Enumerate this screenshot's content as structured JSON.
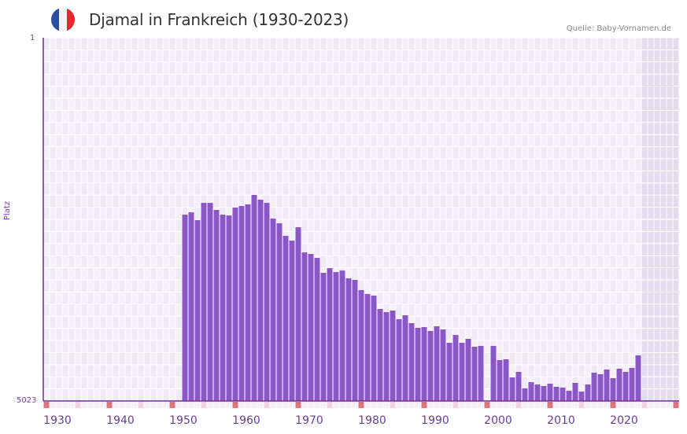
{
  "header": {
    "title": "Djamal in Frankreich (1930-2023)",
    "source": "Quelle: Baby-Vornamen.de",
    "flag_colors": [
      "#2b4fa0",
      "#f3f3f5",
      "#e8262e"
    ]
  },
  "axis": {
    "y_label": "Platz",
    "y_top_label": "1",
    "y_bottom_label": "5023",
    "x_ticks": [
      "1930",
      "1940",
      "1950",
      "1960",
      "1970",
      "1980",
      "1990",
      "2000",
      "2010",
      "2020"
    ]
  },
  "colors": {
    "bar": "#8b56c6",
    "grid_bg_a": "#efeaf8",
    "grid_bg_b": "#f4f1fb",
    "future_shade": "#e3dced",
    "axis_line": "#6a2f9a",
    "decade_marker": "#e07380",
    "half_decade_marker": "#f4d3dc"
  },
  "chart_data": {
    "type": "bar",
    "title": "Djamal in Frankreich (1930-2023)",
    "xlabel": "",
    "ylabel": "Platz",
    "y_inverted": true,
    "ylim": [
      5023,
      1
    ],
    "x_range": [
      1928,
      2028
    ],
    "grid": true,
    "source": "Quelle: Baby-Vornamen.de",
    "x": [
      1950,
      1951,
      1952,
      1953,
      1954,
      1955,
      1956,
      1957,
      1958,
      1959,
      1960,
      1961,
      1962,
      1963,
      1964,
      1965,
      1966,
      1967,
      1968,
      1969,
      1970,
      1971,
      1972,
      1973,
      1974,
      1975,
      1976,
      1977,
      1978,
      1979,
      1980,
      1981,
      1982,
      1983,
      1984,
      1985,
      1986,
      1987,
      1988,
      1989,
      1990,
      1991,
      1992,
      1993,
      1994,
      1995,
      1996,
      1997,
      1999,
      2000,
      2001,
      2002,
      2003,
      2004,
      2005,
      2006,
      2007,
      2008,
      2009,
      2010,
      2011,
      2012,
      2013,
      2014,
      2015,
      2016,
      2017,
      2018,
      2019,
      2020,
      2021,
      2022
    ],
    "values": [
      2447,
      2414,
      2523,
      2284,
      2284,
      2382,
      2447,
      2458,
      2349,
      2327,
      2305,
      2175,
      2240,
      2284,
      2501,
      2567,
      2741,
      2806,
      2621,
      2969,
      2990,
      3045,
      3251,
      3186,
      3241,
      3219,
      3327,
      3349,
      3490,
      3544,
      3566,
      3751,
      3795,
      3773,
      3892,
      3838,
      3947,
      4012,
      4001,
      4055,
      3990,
      4034,
      4219,
      4110,
      4219,
      4164,
      4273,
      4262,
      4262,
      4458,
      4447,
      4697,
      4621,
      4849,
      4762,
      4795,
      4816,
      4784,
      4827,
      4838,
      4882,
      4773,
      4893,
      4795,
      4632,
      4653,
      4588,
      4708,
      4577,
      4621,
      4566,
      4393
    ]
  }
}
